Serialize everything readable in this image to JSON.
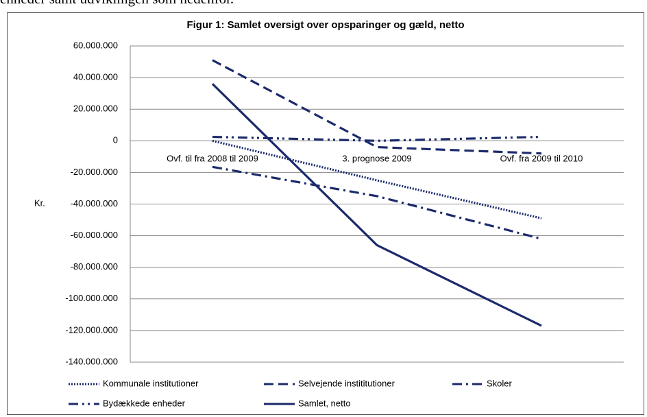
{
  "document_text": "enheder samt udviklingen som nedenfor.",
  "chart_data": {
    "type": "line",
    "title": "Figur 1: Samlet oversigt over opsparinger og gæld, netto",
    "ylabel": "Kr.",
    "categories": [
      "Ovf. til fra 2008 til 2009",
      "3. prognose 2009",
      "Ovf. fra 2009 til 2010"
    ],
    "series": [
      {
        "name": "Kommunale institutioner",
        "color": "#1b2a6b",
        "style": "dotted",
        "values": [
          0,
          -25000000,
          -49000000
        ]
      },
      {
        "name": "Selvejende instititutioner",
        "color": "#1b2a6b",
        "style": "dashed",
        "values": [
          51000000,
          -4000000,
          -8000000
        ]
      },
      {
        "name": "Skoler",
        "color": "#1b2a6b",
        "style": "dashdot",
        "values": [
          -16500000,
          -35000000,
          -62000000
        ]
      },
      {
        "name": "Bydækkede enheder",
        "color": "#1b2a6b",
        "style": "dashdotdot",
        "values": [
          2500000,
          0,
          2500000
        ]
      },
      {
        "name": "Samlet, netto",
        "color": "#1b2a6b",
        "style": "solid",
        "values": [
          36000000,
          -66000000,
          -117000000
        ]
      }
    ],
    "ylim": [
      -140000000,
      60000000
    ],
    "yticks": [
      {
        "value": -140000000,
        "label": "-140.000.000"
      },
      {
        "value": -120000000,
        "label": "-120.000.000"
      },
      {
        "value": -100000000,
        "label": "-100.000.000"
      },
      {
        "value": -80000000,
        "label": "-80.000.000"
      },
      {
        "value": -60000000,
        "label": "-60.000.000"
      },
      {
        "value": -40000000,
        "label": "-40.000.000"
      },
      {
        "value": -20000000,
        "label": "-20.000.000"
      },
      0,
      {
        "value": 20000000,
        "label": "20.000.000"
      },
      {
        "value": 40000000,
        "label": "40.000.000"
      },
      {
        "value": 60000000,
        "label": "60.000.000"
      }
    ],
    "grid": true
  }
}
